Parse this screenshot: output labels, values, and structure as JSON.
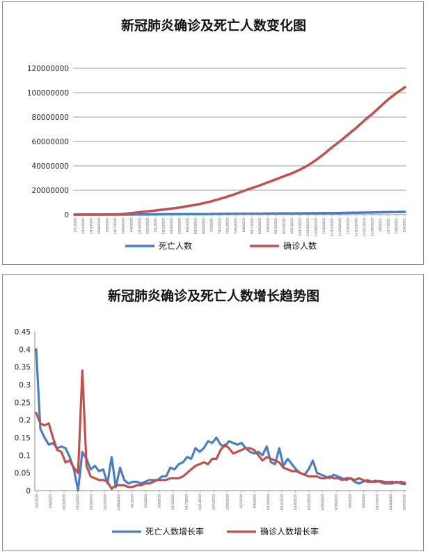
{
  "chart_data": [
    {
      "type": "line",
      "title": "新冠肺炎确诊及死亡人数变化图",
      "xlabel": "",
      "ylabel": "",
      "ylim": [
        0,
        120000000
      ],
      "yticks": [
        "0",
        "20000000",
        "40000000",
        "60000000",
        "80000000",
        "100000000",
        "120000000"
      ],
      "grid": true,
      "legend": "bottom",
      "x_ticks": [
        "2/1/2020",
        "2/10/2020",
        "2/19/2020",
        "2/28/2020",
        "3/8/2020",
        "3/17/2020",
        "3/26/2020",
        "4/4/2020",
        "4/13/2020",
        "4/22/2020",
        "5/1/2020",
        "5/10/2020",
        "5/19/2020",
        "5/28/2020",
        "6/6/2020",
        "6/15/2020",
        "6/24/2020",
        "7/3/2020",
        "7/12/2020",
        "7/21/2020",
        "7/30/2020",
        "8/8/2020",
        "8/17/2020",
        "8/26/2020",
        "9/4/2020",
        "9/13/2020",
        "9/22/2020",
        "10/1/2020",
        "10/10/2020",
        "10/19/2020",
        "10/28/2020",
        "11/6/2020",
        "11/15/2020",
        "11/24/2020",
        "12/3/2020",
        "12/12/2020",
        "12/21/2020",
        "12/30/2020",
        "1/8/2021",
        "1/17/2021",
        "1/26/2021",
        "2/4/2021"
      ],
      "series": [
        {
          "name": "死亡人数",
          "color": "#4a7fbf",
          "values": [
            200,
            1000,
            2100,
            2900,
            3800,
            7500,
            25000,
            60000,
            115000,
            180000,
            240000,
            285000,
            325000,
            360000,
            400000,
            435000,
            480000,
            525000,
            565000,
            610000,
            660000,
            710000,
            770000,
            820000,
            870000,
            920000,
            970000,
            1020000,
            1070000,
            1120000,
            1170000,
            1230000,
            1300000,
            1380000,
            1480000,
            1580000,
            1690000,
            1800000,
            1920000,
            2040000,
            2160000,
            2280000
          ]
        },
        {
          "name": "确诊人数",
          "color": "#c0504d",
          "values": [
            10000,
            40000,
            75000,
            85000,
            110000,
            190000,
            520000,
            1200000,
            1950000,
            2650000,
            3350000,
            4100000,
            4900000,
            5800000,
            6900000,
            8000000,
            9400000,
            11000000,
            12800000,
            14800000,
            17000000,
            19500000,
            21800000,
            24000000,
            26500000,
            29000000,
            31500000,
            34000000,
            37000000,
            40500000,
            45000000,
            50000000,
            55500000,
            60500000,
            66000000,
            71500000,
            77500000,
            83000000,
            89000000,
            95000000,
            100000000,
            104500000
          ]
        }
      ]
    },
    {
      "type": "line",
      "title": "新冠肺炎确诊及死亡人数增长趋势图",
      "xlabel": "",
      "ylabel": "",
      "ylim": [
        0,
        0.45
      ],
      "yticks": [
        "0",
        "0.05",
        "0.1",
        "0.15",
        "0.2",
        "0.25",
        "0.3",
        "0.35",
        "0.4",
        "0.45"
      ],
      "grid": false,
      "legend": "bottom",
      "x_ticks": [
        "2/2/2020",
        "2/6/2020",
        "2/10/2020",
        "2/14/2020",
        "2/18/2020",
        "2/22/2020",
        "2/26/2020",
        "3/1/2020",
        "3/5/2020",
        "3/9/2020",
        "3/13/2020",
        "3/17/2020",
        "3/21/2020",
        "3/25/2020",
        "3/29/2020",
        "4/2/2020",
        "4/6/2020",
        "4/10/2020",
        "4/14/2020",
        "4/18/2020",
        "4/22/2020",
        "4/26/2020",
        "4/30/2020",
        "5/4/2020",
        "5/8/2020",
        "5/12/2020",
        "5/16/2020",
        "5/20/2020"
      ],
      "series": [
        {
          "name": "死亡人数增长率",
          "color": "#4a7fbf",
          "values": [
            0.4,
            0.175,
            0.15,
            0.13,
            0.135,
            0.12,
            0.125,
            0.12,
            0.095,
            0.06,
            0.0,
            0.11,
            0.09,
            0.06,
            0.07,
            0.055,
            0.06,
            0.02,
            0.095,
            0.01,
            0.065,
            0.03,
            0.02,
            0.025,
            0.025,
            0.02,
            0.025,
            0.03,
            0.03,
            0.03,
            0.04,
            0.04,
            0.065,
            0.06,
            0.075,
            0.08,
            0.095,
            0.09,
            0.12,
            0.11,
            0.12,
            0.14,
            0.135,
            0.15,
            0.13,
            0.125,
            0.14,
            0.135,
            0.13,
            0.135,
            0.12,
            0.11,
            0.105,
            0.11,
            0.1,
            0.125,
            0.08,
            0.075,
            0.12,
            0.07,
            0.09,
            0.075,
            0.06,
            0.05,
            0.045,
            0.06,
            0.085,
            0.05,
            0.045,
            0.04,
            0.035,
            0.045,
            0.04,
            0.035,
            0.03,
            0.035,
            0.025,
            0.02,
            0.025,
            0.03,
            0.025,
            0.028,
            0.025,
            0.02,
            0.02,
            0.02,
            0.025,
            0.02,
            0.018
          ]
        },
        {
          "name": "确诊人数增长率",
          "color": "#c0504d",
          "values": [
            0.22,
            0.19,
            0.185,
            0.19,
            0.15,
            0.115,
            0.11,
            0.08,
            0.085,
            0.065,
            0.05,
            0.34,
            0.07,
            0.04,
            0.035,
            0.03,
            0.03,
            0.025,
            0.005,
            0.015,
            0.015,
            0.015,
            0.01,
            0.01,
            0.015,
            0.015,
            0.02,
            0.02,
            0.025,
            0.03,
            0.03,
            0.03,
            0.035,
            0.035,
            0.035,
            0.04,
            0.05,
            0.06,
            0.07,
            0.075,
            0.08,
            0.075,
            0.09,
            0.09,
            0.115,
            0.13,
            0.12,
            0.105,
            0.11,
            0.115,
            0.12,
            0.12,
            0.115,
            0.1,
            0.085,
            0.095,
            0.09,
            0.085,
            0.08,
            0.065,
            0.06,
            0.055,
            0.055,
            0.05,
            0.045,
            0.04,
            0.04,
            0.04,
            0.035,
            0.035,
            0.04,
            0.035,
            0.035,
            0.03,
            0.035,
            0.035,
            0.03,
            0.035,
            0.03,
            0.025,
            0.025,
            0.025,
            0.027,
            0.025,
            0.024,
            0.025,
            0.022,
            0.025,
            0.022
          ]
        }
      ]
    }
  ]
}
